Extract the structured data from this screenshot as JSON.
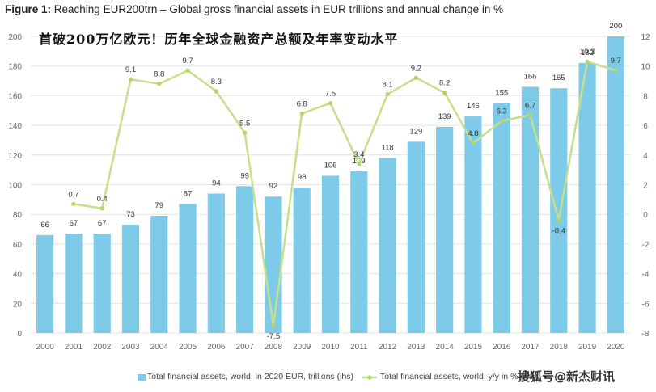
{
  "figure_label": "Figure 1:",
  "figure_title": "Reaching EUR200trn – Global gross financial assets in EUR trillions and annual change in %",
  "overlay_title": "首破200万亿欧元！历年全球金融资产总额及年率变动水平",
  "watermark": "搜狐号@新杰财讯",
  "colors": {
    "bar": "#7dcbe8",
    "line": "#c5e08a",
    "marker": "#b3d46a",
    "grid": "#e4e4e4",
    "axis_text": "#666666"
  },
  "chart_data": {
    "type": "bar+line",
    "categories": [
      "2000",
      "2001",
      "2002",
      "2003",
      "2004",
      "2005",
      "2006",
      "2007",
      "2008",
      "2009",
      "2010",
      "2011",
      "2012",
      "2013",
      "2014",
      "2015",
      "2016",
      "2017",
      "2018",
      "2019",
      "2020"
    ],
    "series": [
      {
        "name": "Total financial assets, world, in 2020 EUR, trillions (lhs)",
        "type": "bar",
        "axis": "left",
        "values": [
          66,
          67,
          67,
          73,
          79,
          87,
          94,
          99,
          92,
          98,
          106,
          109,
          118,
          129,
          139,
          146,
          155,
          166,
          165,
          182,
          200
        ]
      },
      {
        "name": "Total financial assets, world, y/y in % (rhs)",
        "type": "line",
        "axis": "right",
        "values": [
          null,
          0.7,
          0.4,
          9.1,
          8.8,
          9.7,
          8.3,
          5.5,
          -7.5,
          6.8,
          7.5,
          3.4,
          8.1,
          9.2,
          8.2,
          4.8,
          6.3,
          6.7,
          -0.4,
          10.3,
          9.7
        ],
        "labels": [
          "",
          "0.7",
          "0.4",
          "9.1",
          "8.8",
          "9.7",
          "8.3",
          "5.5",
          "-7.5",
          "6.8",
          "7.5",
          "3.4",
          "8.1",
          "9.2",
          "8.2",
          "4.8",
          "6.3",
          "6.7",
          "-0.4",
          "10.3",
          "9.7"
        ]
      }
    ],
    "left_axis": {
      "min": 0,
      "max": 200,
      "ticks": [
        "0",
        "20",
        "40",
        "60",
        "80",
        "100",
        "120",
        "140",
        "160",
        "180",
        "200"
      ]
    },
    "right_axis": {
      "min": -8,
      "max": 12,
      "ticks": [
        "-8",
        "-6",
        "-4",
        "-2",
        "0",
        "2",
        "4",
        "6",
        "8",
        "10",
        "12"
      ]
    },
    "grid": true,
    "legend_position": "bottom"
  }
}
